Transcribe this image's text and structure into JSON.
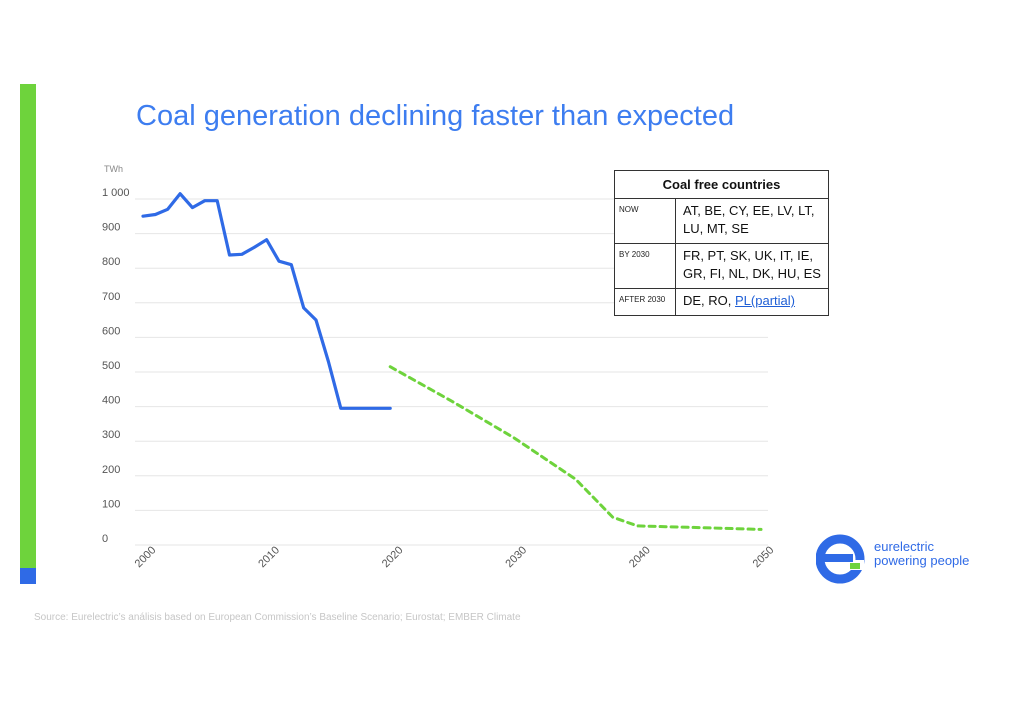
{
  "title": "Coal generation declining faster than expected",
  "source": "Source: Eurelectric’s análisis based on European Commission’s Baseline Scenario; Eurostat; EMBER Climate",
  "logo": {
    "line1": "eurelectric",
    "line2": "powering people"
  },
  "colors": {
    "accent_green": "#6ed33c",
    "accent_blue": "#2f6ae6",
    "historic": "#2f6ae6",
    "projection": "#6ed33c"
  },
  "table": {
    "header": "Coal free countries",
    "rows": [
      {
        "label": "NOW",
        "value": "AT, BE, CY, EE, LV, LT, LU, MT, SE"
      },
      {
        "label": "BY 2030",
        "value": "FR, PT, SK, UK, IT, IE, GR, FI, NL, DK, HU, ES"
      },
      {
        "label": "AFTER 2030",
        "value": "DE, RO, ",
        "link": "PL(partial)"
      }
    ]
  },
  "chart_data": {
    "type": "line",
    "title": "",
    "xlabel": "",
    "ylabel": "TWh",
    "xlim": [
      2000,
      2050
    ],
    "ylim": [
      0,
      1000
    ],
    "x_ticks": [
      "2000",
      "2010",
      "2020",
      "2030",
      "2040",
      "2050"
    ],
    "y_ticks": [
      "1 000",
      "900",
      "800",
      "700",
      "600",
      "500",
      "400",
      "300",
      "200",
      "100",
      "0"
    ],
    "grid": true,
    "series": [
      {
        "style": "solid",
        "color": "#2f6ae6",
        "x": [
          2000,
          2001,
          2002,
          2003,
          2004,
          2005,
          2006,
          2007,
          2008,
          2009,
          2010,
          2011,
          2012,
          2013,
          2014,
          2015,
          2016,
          2017,
          2018,
          2019,
          2020
        ],
        "y": [
          930,
          935,
          950,
          995,
          955,
          975,
          975,
          818,
          820,
          840,
          862,
          800,
          790,
          665,
          630,
          510,
          375,
          375,
          375,
          375,
          375
        ]
      },
      {
        "style": "dashed",
        "color": "#6ed33c",
        "x": [
          2020,
          2025,
          2030,
          2035,
          2038,
          2040,
          2045,
          2050
        ],
        "y": [
          495,
          395,
          290,
          170,
          60,
          35,
          30,
          25
        ]
      }
    ]
  }
}
